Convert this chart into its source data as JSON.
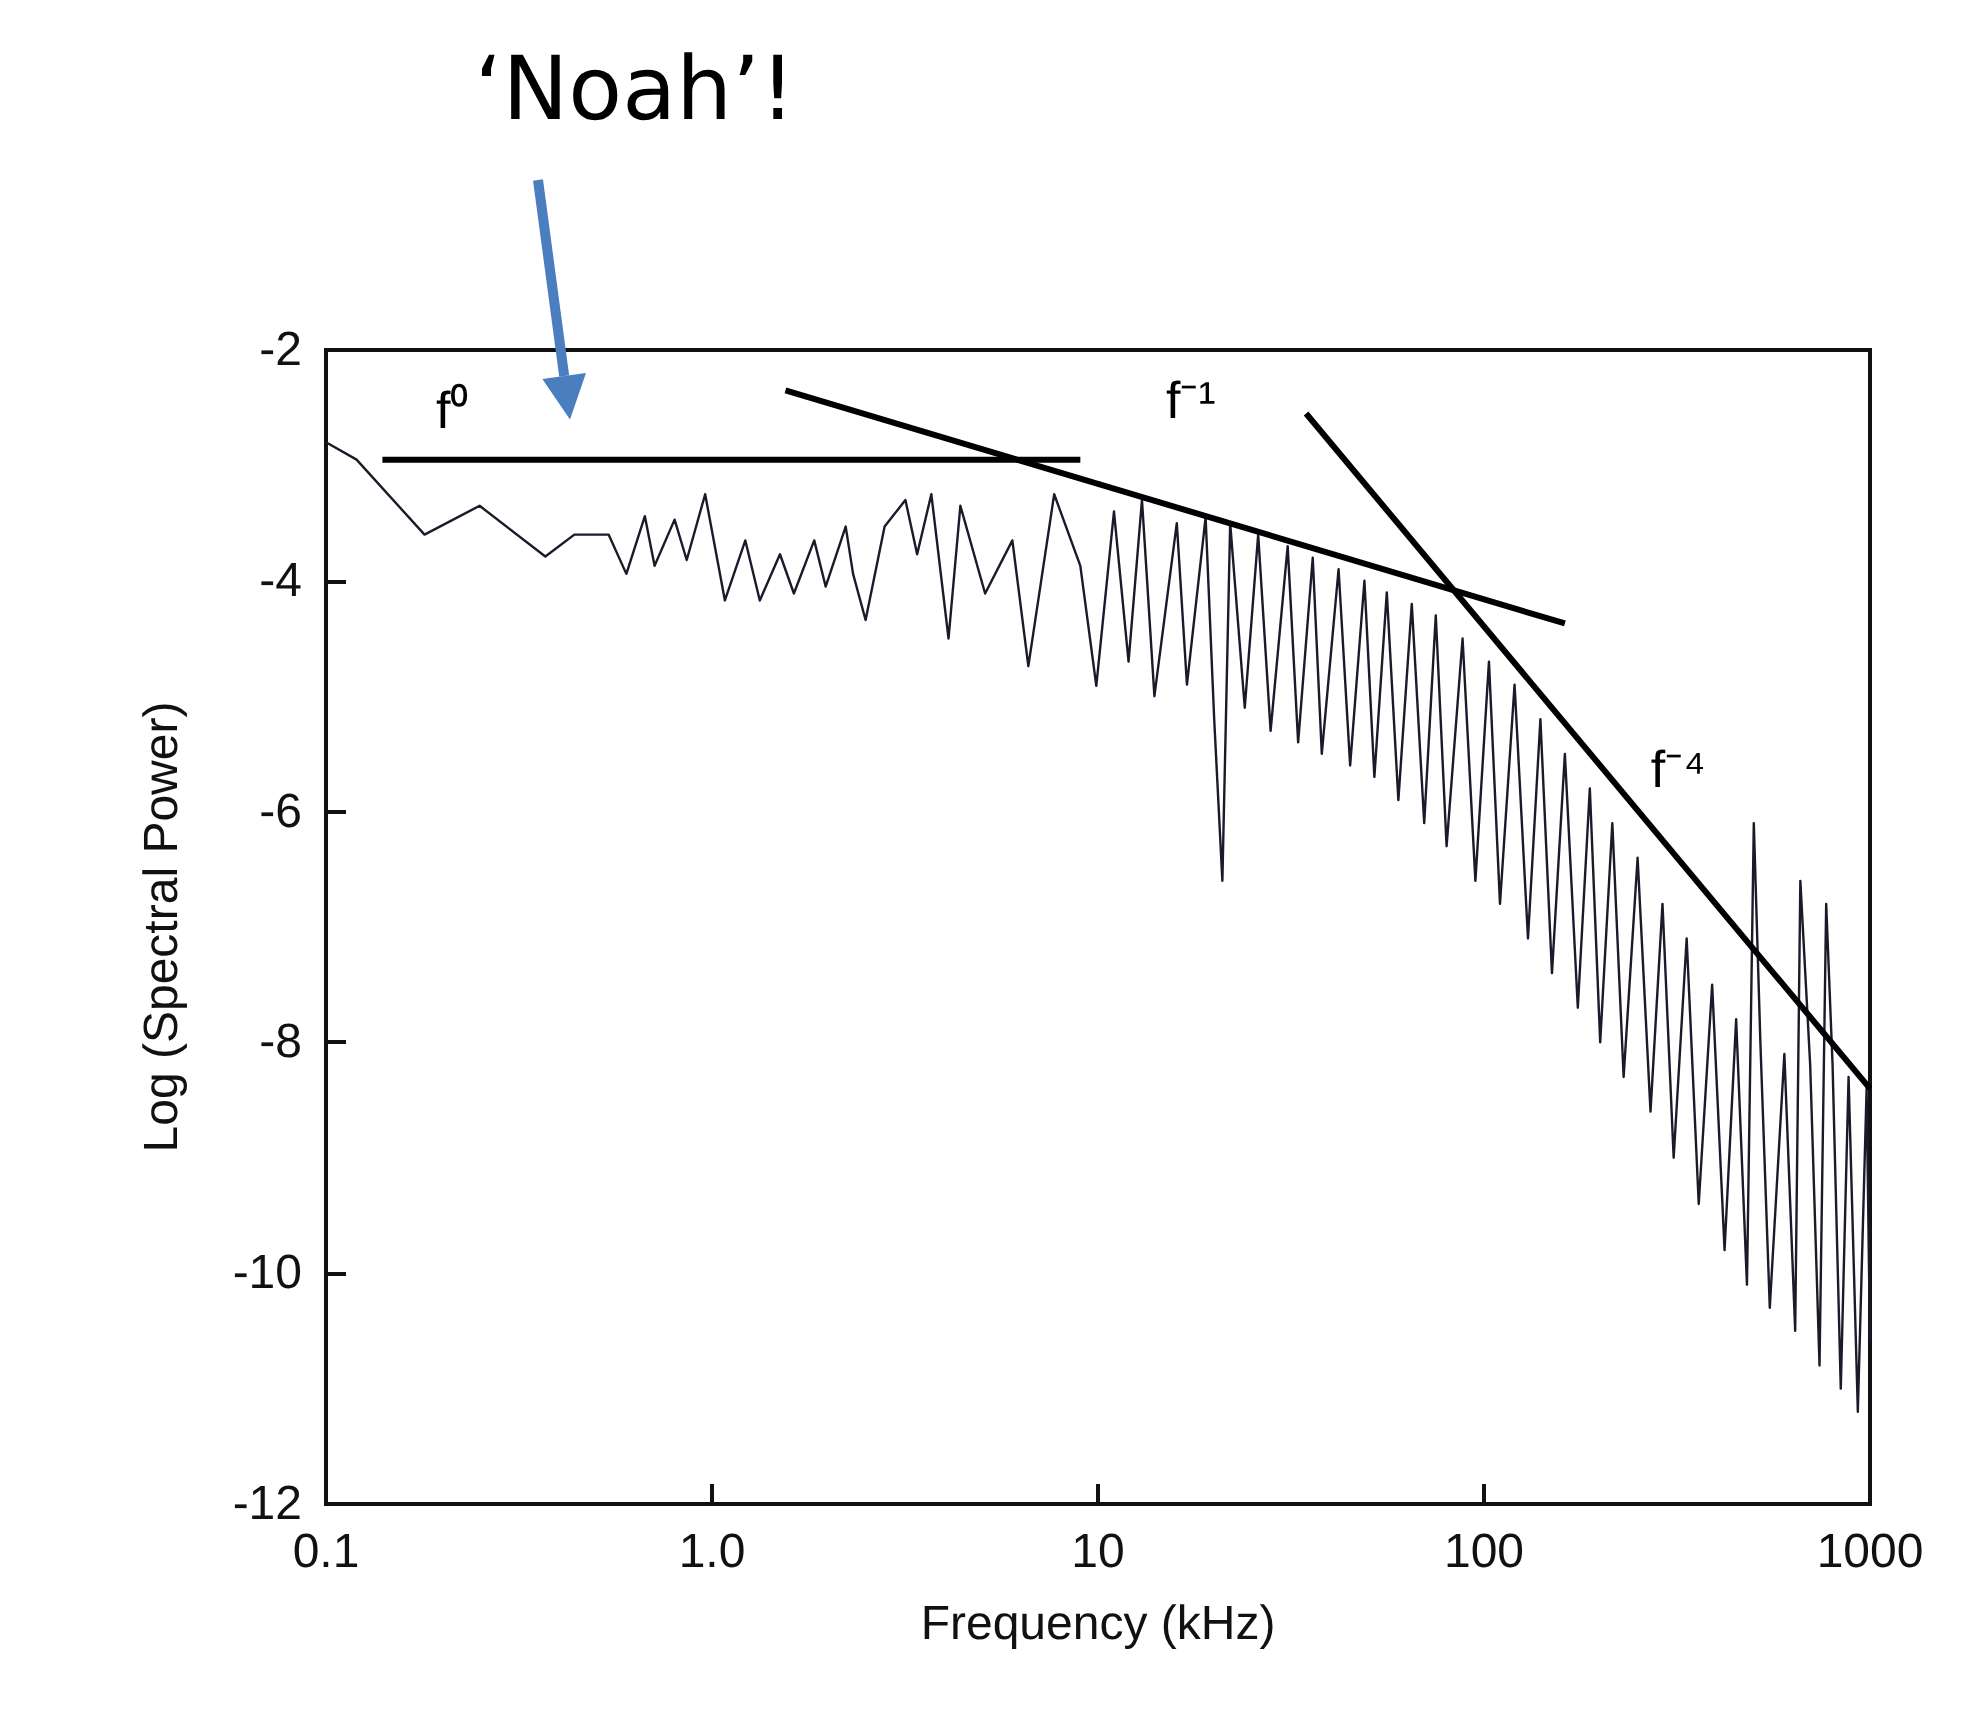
{
  "chart_data": {
    "type": "line",
    "xlabel": "Frequency (kHz)",
    "ylabel": "Log (Spectral Power)",
    "log": "x",
    "xlim": [
      0.1,
      1000
    ],
    "xticks": [
      0.1,
      {
        "value": 1,
        "label": "1.0"
      },
      10,
      100,
      1000
    ],
    "ylim": [
      -12,
      -2
    ],
    "yticks": [
      -12,
      -10,
      -8,
      -6,
      -4,
      -2
    ],
    "grid": false,
    "legend": false,
    "marker": "none",
    "line_style": "solid",
    "series": [
      {
        "color": "#1c1a2a",
        "x": [
          0.1,
          0.12,
          0.18,
          0.25,
          0.37,
          0.44,
          0.54,
          0.6,
          0.67,
          0.71,
          0.8,
          0.86,
          0.96,
          1.08,
          1.22,
          1.33,
          1.5,
          1.63,
          1.84,
          1.97,
          2.22,
          2.32,
          2.5,
          2.8,
          3.17,
          3.4,
          3.7,
          4.1,
          4.4,
          5.1,
          6.0,
          6.6,
          7.7,
          9.0,
          9.9,
          11,
          12,
          13,
          14,
          16,
          17,
          19,
          20,
          21,
          22,
          24,
          26,
          28,
          31,
          33,
          36,
          38,
          42,
          45,
          49,
          52,
          56,
          60,
          65,
          70,
          75,
          80,
          88,
          95,
          103,
          110,
          120,
          130,
          140,
          150,
          162,
          175,
          188,
          200,
          215,
          230,
          250,
          270,
          290,
          310,
          335,
          360,
          390,
          420,
          450,
          480,
          500,
          520,
          550,
          600,
          640,
          660,
          700,
          740,
          770,
          800,
          840,
          880,
          930,
          980,
          1000
        ],
        "values": [
          -2.8,
          -2.95,
          -3.6,
          -3.35,
          -3.79,
          -3.6,
          -3.6,
          -3.94,
          -3.44,
          -3.87,
          -3.47,
          -3.82,
          -3.25,
          -4.17,
          -3.65,
          -4.17,
          -3.77,
          -4.11,
          -3.65,
          -4.05,
          -3.53,
          -3.94,
          -4.34,
          -3.53,
          -3.3,
          -3.77,
          -3.25,
          -4.5,
          -3.35,
          -4.11,
          -3.65,
          -4.74,
          -3.25,
          -3.87,
          -4.91,
          -3.4,
          -4.7,
          -3.3,
          -5.0,
          -3.5,
          -4.9,
          -3.45,
          -5.2,
          -6.6,
          -3.5,
          -5.1,
          -3.6,
          -5.3,
          -3.7,
          -5.4,
          -3.8,
          -5.5,
          -3.9,
          -5.6,
          -4.0,
          -5.7,
          -4.1,
          -5.9,
          -4.2,
          -6.1,
          -4.3,
          -6.3,
          -4.5,
          -6.6,
          -4.7,
          -6.8,
          -4.9,
          -7.1,
          -5.2,
          -7.4,
          -5.5,
          -7.7,
          -5.8,
          -8.0,
          -6.1,
          -8.3,
          -6.4,
          -8.6,
          -6.8,
          -9.0,
          -7.1,
          -9.4,
          -7.5,
          -9.8,
          -7.8,
          -10.1,
          -6.1,
          -8.0,
          -10.3,
          -8.1,
          -10.5,
          -6.6,
          -8.2,
          -10.8,
          -6.8,
          -8.2,
          -11.0,
          -8.3,
          -11.2,
          -8.4,
          -10.6
        ]
      },
      {
        "name": "f⁰",
        "color": "#000000",
        "x": [
          0.14,
          9
        ],
        "values": [
          -2.95,
          -2.95
        ]
      },
      {
        "name": "f⁻¹",
        "color": "#000000",
        "x": [
          1.55,
          162
        ],
        "values": [
          -2.35,
          -4.37
        ]
      },
      {
        "name": "f⁻⁴",
        "color": "#000000",
        "x": [
          34.6,
          1000
        ],
        "values": [
          -2.55,
          -8.4
        ]
      }
    ],
    "annotations": [
      "‘Noah’!"
    ]
  }
}
